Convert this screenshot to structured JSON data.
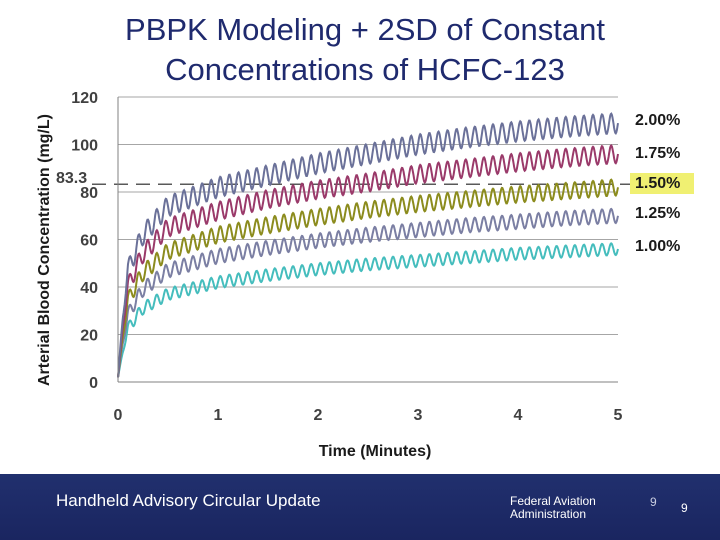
{
  "slide": {
    "title_line1": "PBPK Modeling + 2SD of Constant",
    "title_line2": "Concentrations of HCFC-123"
  },
  "footer": {
    "left_text": "Handheld Advisory Circular Update",
    "agency_line1": "Federal Aviation",
    "agency_line2": "Administration",
    "page_number_a": "9",
    "page_number_b": "9"
  },
  "chart_data": {
    "type": "line",
    "title": "PBPK Modeling + 2SD of Constant Concentrations of HCFC-123",
    "xlabel": "Time  (Minutes)",
    "ylabel": "Arterial Blood Concentration  (mg/L)",
    "xlim": [
      0,
      5
    ],
    "ylim": [
      0,
      120
    ],
    "xticks": [
      "0",
      "1",
      "2",
      "3",
      "4",
      "5"
    ],
    "yticks": [
      "0",
      "20",
      "40",
      "60",
      "80",
      "100",
      "120"
    ],
    "grid": true,
    "reference_line": {
      "label": "83.3",
      "value": 83.3,
      "style": "dashed"
    },
    "highlighted_legend_entry": "1.50%",
    "x": [
      0,
      0.05,
      0.1,
      0.25,
      0.5,
      1,
      1.5,
      2,
      2.5,
      3,
      3.5,
      4,
      4.5,
      5
    ],
    "oscillation_cycles_per_minute": 11,
    "series": [
      {
        "name": "2.00%",
        "color": "#6b7199",
        "band_halfwidth": 4.2,
        "values": [
          2,
          28,
          48,
          62,
          74,
          82,
          87,
          92,
          96,
          100,
          103,
          105.5,
          107.5,
          109
        ]
      },
      {
        "name": "1.75%",
        "color": "#9a3a6a",
        "band_halfwidth": 3.8,
        "values": [
          2,
          24,
          41,
          54,
          65,
          72,
          77,
          81,
          84,
          87.5,
          90,
          92.5,
          94.5,
          96
        ]
      },
      {
        "name": "1.50%",
        "color": "#8c8c1e",
        "band_halfwidth": 3.4,
        "values": [
          2,
          20,
          35,
          46,
          55,
          62,
          66,
          69.5,
          72.5,
          75,
          77,
          79,
          80.5,
          82
        ]
      },
      {
        "name": "1.25%",
        "color": "#7b7fa3",
        "band_halfwidth": 3.0,
        "values": [
          2,
          17,
          29,
          39,
          47,
          53,
          56.5,
          59.5,
          62,
          64,
          66,
          67.5,
          69,
          70
        ]
      },
      {
        "name": "1.00%",
        "color": "#45bdbd",
        "band_halfwidth": 2.5,
        "values": [
          2,
          13,
          23,
          31,
          37,
          42,
          45,
          47.5,
          49.5,
          51,
          52.5,
          54,
          55,
          56
        ]
      }
    ]
  }
}
